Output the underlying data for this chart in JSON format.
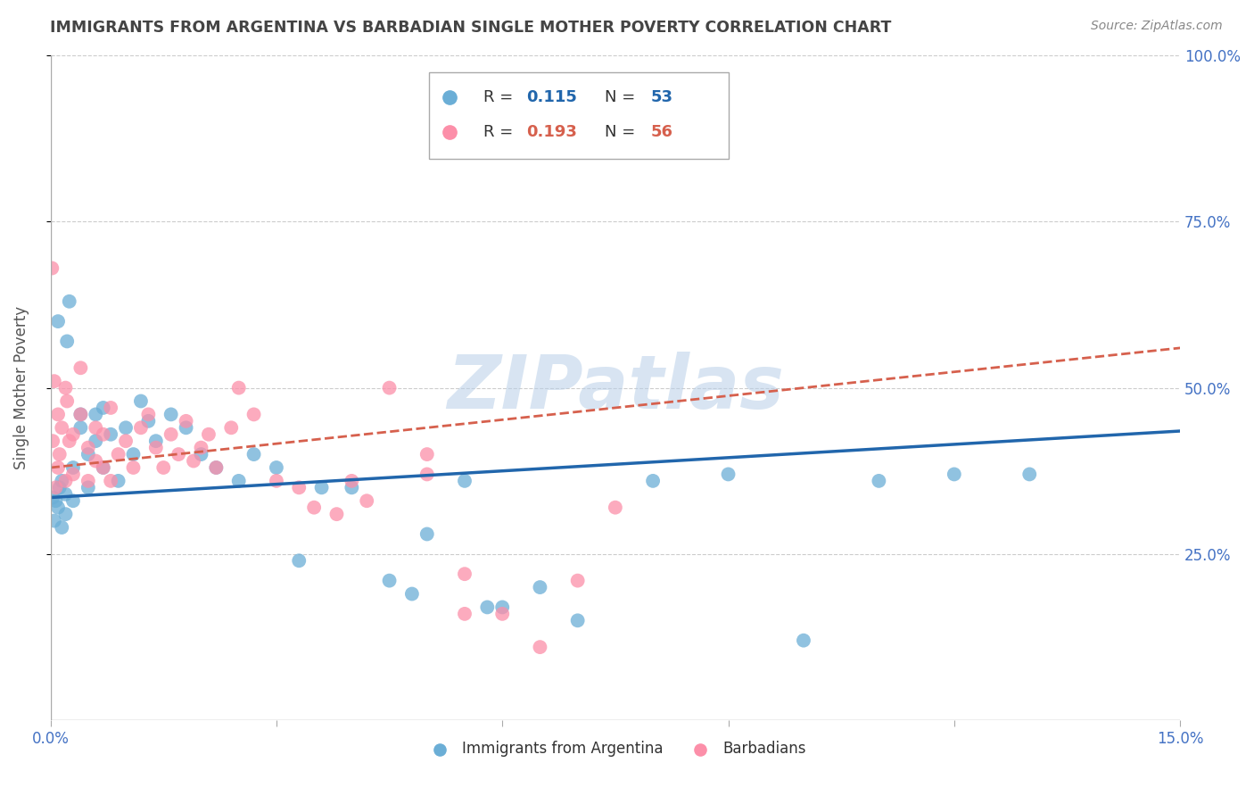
{
  "title": "IMMIGRANTS FROM ARGENTINA VS BARBADIAN SINGLE MOTHER POVERTY CORRELATION CHART",
  "source": "Source: ZipAtlas.com",
  "ylabel": "Single Mother Poverty",
  "xlim": [
    0.0,
    0.15
  ],
  "ylim": [
    0.0,
    1.0
  ],
  "xticks": [
    0.0,
    0.03,
    0.06,
    0.09,
    0.12,
    0.15
  ],
  "xticklabels": [
    "0.0%",
    "",
    "",
    "",
    "",
    "15.0%"
  ],
  "yticks_right": [
    0.25,
    0.5,
    0.75,
    1.0
  ],
  "yticklabels_right": [
    "25.0%",
    "50.0%",
    "75.0%",
    "100.0%"
  ],
  "legend_labels": [
    "Immigrants from Argentina",
    "Barbadians"
  ],
  "legend_r1": "0.115",
  "legend_n1": "53",
  "legend_r2": "0.193",
  "legend_n2": "56",
  "blue_color": "#6baed6",
  "pink_color": "#fc8fa9",
  "blue_line_color": "#2166ac",
  "pink_line_color": "#d6604d",
  "grid_color": "#cccccc",
  "watermark": "ZIPatlas",
  "title_color": "#444444",
  "axis_label_color": "#555555",
  "tick_label_color": "#4472c4",
  "arg_x": [
    0.0003,
    0.0005,
    0.0007,
    0.001,
    0.001,
    0.0012,
    0.0015,
    0.0015,
    0.002,
    0.002,
    0.0022,
    0.0025,
    0.003,
    0.003,
    0.004,
    0.004,
    0.005,
    0.005,
    0.006,
    0.006,
    0.007,
    0.007,
    0.008,
    0.009,
    0.01,
    0.011,
    0.012,
    0.013,
    0.014,
    0.016,
    0.018,
    0.02,
    0.022,
    0.025,
    0.027,
    0.03,
    0.033,
    0.036,
    0.04,
    0.045,
    0.048,
    0.05,
    0.055,
    0.058,
    0.06,
    0.065,
    0.07,
    0.08,
    0.09,
    0.1,
    0.11,
    0.12,
    0.13
  ],
  "arg_y": [
    0.335,
    0.3,
    0.33,
    0.32,
    0.6,
    0.35,
    0.29,
    0.36,
    0.31,
    0.34,
    0.57,
    0.63,
    0.38,
    0.33,
    0.46,
    0.44,
    0.4,
    0.35,
    0.46,
    0.42,
    0.38,
    0.47,
    0.43,
    0.36,
    0.44,
    0.4,
    0.48,
    0.45,
    0.42,
    0.46,
    0.44,
    0.4,
    0.38,
    0.36,
    0.4,
    0.38,
    0.24,
    0.35,
    0.35,
    0.21,
    0.19,
    0.28,
    0.36,
    0.17,
    0.17,
    0.2,
    0.15,
    0.36,
    0.37,
    0.12,
    0.36,
    0.37,
    0.37
  ],
  "barb_x": [
    0.0002,
    0.0003,
    0.0005,
    0.0007,
    0.001,
    0.001,
    0.0012,
    0.0015,
    0.002,
    0.002,
    0.0022,
    0.0025,
    0.003,
    0.003,
    0.004,
    0.004,
    0.005,
    0.005,
    0.006,
    0.006,
    0.007,
    0.007,
    0.008,
    0.008,
    0.009,
    0.01,
    0.011,
    0.012,
    0.013,
    0.014,
    0.015,
    0.016,
    0.017,
    0.018,
    0.019,
    0.02,
    0.021,
    0.022,
    0.024,
    0.025,
    0.027,
    0.03,
    0.033,
    0.035,
    0.038,
    0.04,
    0.042,
    0.045,
    0.05,
    0.055,
    0.06,
    0.065,
    0.07,
    0.075,
    0.05,
    0.055
  ],
  "barb_y": [
    0.68,
    0.42,
    0.51,
    0.35,
    0.38,
    0.46,
    0.4,
    0.44,
    0.5,
    0.36,
    0.48,
    0.42,
    0.37,
    0.43,
    0.53,
    0.46,
    0.41,
    0.36,
    0.39,
    0.44,
    0.43,
    0.38,
    0.47,
    0.36,
    0.4,
    0.42,
    0.38,
    0.44,
    0.46,
    0.41,
    0.38,
    0.43,
    0.4,
    0.45,
    0.39,
    0.41,
    0.43,
    0.38,
    0.44,
    0.5,
    0.46,
    0.36,
    0.35,
    0.32,
    0.31,
    0.36,
    0.33,
    0.5,
    0.4,
    0.22,
    0.16,
    0.11,
    0.21,
    0.32,
    0.37,
    0.16
  ],
  "arg_line_x": [
    0.0,
    0.15
  ],
  "arg_line_y": [
    0.335,
    0.435
  ],
  "barb_line_x": [
    0.0,
    0.15
  ],
  "barb_line_y": [
    0.38,
    0.56
  ]
}
